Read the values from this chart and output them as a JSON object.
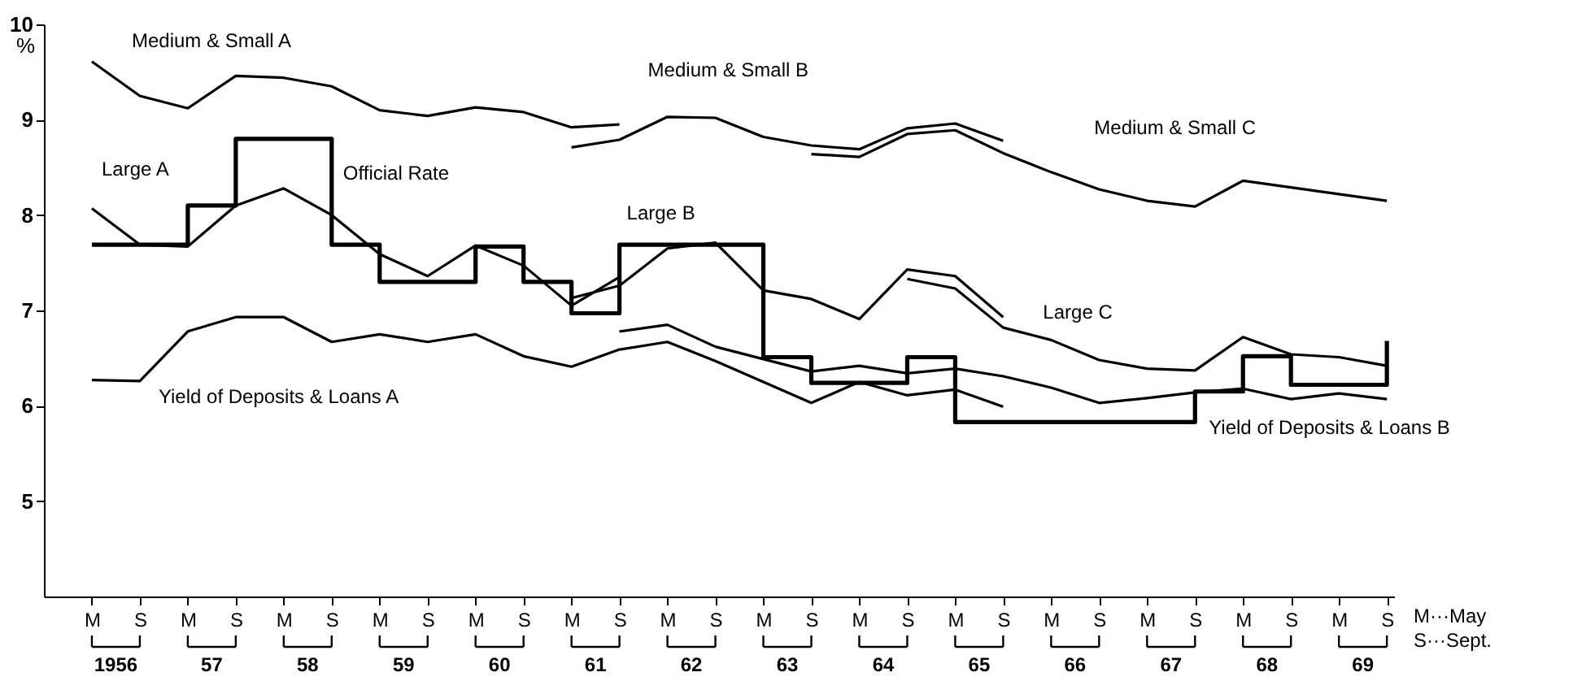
{
  "chart_data": {
    "type": "line",
    "ylabel": "%",
    "ylim": [
      4,
      10
    ],
    "yticks": [
      5,
      6,
      7,
      8,
      9,
      10
    ],
    "legend": false,
    "marker": "none",
    "categories": [
      "M",
      "S",
      "M",
      "S",
      "M",
      "S",
      "M",
      "S",
      "M",
      "S",
      "M",
      "S",
      "M",
      "S",
      "M",
      "S",
      "M",
      "S",
      "M",
      "S",
      "M",
      "S",
      "M",
      "S",
      "M",
      "S",
      "M",
      "S"
    ],
    "annotations": [
      "1956",
      "57",
      "58",
      "59",
      "60",
      "61",
      "62",
      "63",
      "64",
      "65",
      "66",
      "67",
      "68",
      "69",
      "M···May",
      "S···Sept."
    ],
    "series": [
      {
        "name": "Medium & Small A",
        "color": "#000000",
        "values": [
          9.61,
          9.25,
          9.12,
          9.46,
          9.44,
          9.35,
          9.1,
          9.04,
          9.13,
          9.08,
          8.92,
          8.95,
          null,
          null,
          null,
          null,
          null,
          null,
          null,
          null,
          null,
          null,
          null,
          null,
          null,
          null,
          null,
          null
        ]
      },
      {
        "name": "Medium & Small B",
        "color": "#000000",
        "values": [
          null,
          null,
          null,
          null,
          null,
          null,
          null,
          null,
          null,
          null,
          8.71,
          8.79,
          9.03,
          9.02,
          8.82,
          8.73,
          8.69,
          8.91,
          8.96,
          8.78,
          null,
          null,
          null,
          null,
          null,
          null,
          null,
          null
        ]
      },
      {
        "name": "Medium & Small C",
        "color": "#000000",
        "values": [
          null,
          null,
          null,
          null,
          null,
          null,
          null,
          null,
          null,
          null,
          null,
          null,
          null,
          null,
          null,
          8.64,
          8.61,
          8.85,
          8.89,
          8.65,
          8.45,
          8.27,
          8.15,
          8.09,
          8.36,
          8.29,
          8.22,
          8.15
        ]
      },
      {
        "name": "Large A",
        "color": "#000000",
        "values": [
          8.07,
          7.69,
          7.67,
          8.1,
          8.28,
          8.0,
          7.59,
          7.36,
          7.68,
          7.47,
          7.05,
          7.35,
          null,
          null,
          null,
          null,
          null,
          null,
          null,
          null,
          null,
          null,
          null,
          null,
          null,
          null,
          null,
          null
        ]
      },
      {
        "name": "Large B",
        "color": "#000000",
        "values": [
          null,
          null,
          null,
          null,
          null,
          null,
          null,
          null,
          null,
          null,
          7.13,
          7.26,
          7.65,
          7.71,
          7.21,
          7.12,
          6.91,
          7.43,
          7.36,
          6.93,
          null,
          null,
          null,
          null,
          null,
          null,
          null,
          null
        ]
      },
      {
        "name": "Large C",
        "color": "#000000",
        "values": [
          null,
          null,
          null,
          null,
          null,
          null,
          null,
          null,
          null,
          null,
          null,
          null,
          null,
          null,
          null,
          null,
          null,
          7.33,
          7.23,
          6.82,
          6.69,
          6.48,
          6.39,
          6.37,
          6.72,
          6.54,
          6.51,
          6.42
        ]
      },
      {
        "name": "Official Rate",
        "type": "step",
        "color": "#000000",
        "values": [
          7.69,
          7.69,
          8.1,
          8.8,
          8.8,
          7.69,
          7.3,
          7.3,
          7.67,
          7.3,
          6.97,
          7.69,
          7.69,
          7.69,
          6.51,
          6.24,
          6.24,
          6.51,
          5.83,
          5.83,
          5.83,
          5.83,
          5.83,
          6.15,
          6.52,
          6.22,
          6.22,
          6.68
        ]
      },
      {
        "name": "Yield of Deposits & Loans A",
        "color": "#000000",
        "values": [
          6.27,
          6.26,
          6.78,
          6.93,
          6.93,
          6.67,
          6.75,
          6.67,
          6.75,
          6.52,
          6.41,
          6.59,
          6.67,
          6.47,
          6.25,
          6.03,
          6.25,
          6.11,
          6.17,
          5.99,
          null,
          null,
          null,
          null,
          null,
          null,
          null,
          null
        ]
      },
      {
        "name": "Yield of Deposits & Loans B",
        "color": "#000000",
        "values": [
          null,
          null,
          null,
          null,
          null,
          null,
          null,
          null,
          null,
          null,
          null,
          6.78,
          6.85,
          6.62,
          6.49,
          6.36,
          6.42,
          6.34,
          6.39,
          6.31,
          6.19,
          6.03,
          6.08,
          6.14,
          6.18,
          6.07,
          6.13,
          6.07
        ]
      }
    ]
  }
}
